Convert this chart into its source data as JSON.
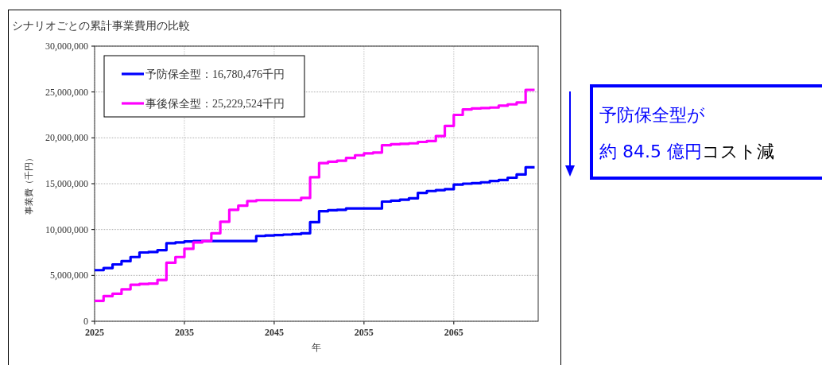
{
  "chart_data": {
    "type": "step",
    "title": "シナリオごとの累計事業費用の比較",
    "xlabel": "年",
    "ylabel": "事業費（千円）",
    "x": [
      2025,
      2026,
      2027,
      2028,
      2029,
      2030,
      2031,
      2032,
      2033,
      2034,
      2035,
      2036,
      2037,
      2038,
      2039,
      2040,
      2041,
      2042,
      2043,
      2044,
      2045,
      2046,
      2047,
      2048,
      2049,
      2050,
      2051,
      2052,
      2053,
      2054,
      2055,
      2056,
      2057,
      2058,
      2059,
      2060,
      2061,
      2062,
      2063,
      2064,
      2065,
      2066,
      2067,
      2068,
      2069,
      2070,
      2071,
      2072,
      2073,
      2074
    ],
    "series": [
      {
        "name": "予防保全型：16,780,476千円",
        "color": "#0000ff",
        "values": [
          5570000,
          5800000,
          6200000,
          6550000,
          7000000,
          7500000,
          7550000,
          7750000,
          8500000,
          8600000,
          8700000,
          8750000,
          8750000,
          8750000,
          8750000,
          8750000,
          8750000,
          8750000,
          9300000,
          9350000,
          9400000,
          9450000,
          9500000,
          9600000,
          10800000,
          12000000,
          12100000,
          12150000,
          12300000,
          12300000,
          12300000,
          12300000,
          13050000,
          13150000,
          13250000,
          13400000,
          14000000,
          14200000,
          14300000,
          14400000,
          14900000,
          15000000,
          15050000,
          15150000,
          15300000,
          15400000,
          15650000,
          16000000,
          16780476,
          16780476
        ]
      },
      {
        "name": "事後保全型：25,229,524千円",
        "color": "#ff00ff",
        "values": [
          2230000,
          2750000,
          3000000,
          3480000,
          3970000,
          4060000,
          4100000,
          4500000,
          6380000,
          7000000,
          7900000,
          8600000,
          8750000,
          9600000,
          10850000,
          12150000,
          12600000,
          13100000,
          13200000,
          13200000,
          13200000,
          13200000,
          13200000,
          13450000,
          15700000,
          17250000,
          17400000,
          17500000,
          17800000,
          18100000,
          18300000,
          18400000,
          19200000,
          19300000,
          19350000,
          19400000,
          19550000,
          19650000,
          20200000,
          21300000,
          22500000,
          23100000,
          23200000,
          23250000,
          23300000,
          23500000,
          23650000,
          23850000,
          25229524,
          25229524
        ]
      }
    ],
    "xlim": [
      2025,
      2074.4
    ],
    "ylim": [
      0,
      30000000
    ],
    "xticks": [
      2025,
      2035,
      2045,
      2055,
      2065
    ],
    "yticks": [
      0,
      {
        "value": 5000000,
        "label": "5,000,000"
      },
      {
        "value": 10000000,
        "label": "10,000,000"
      },
      {
        "value": 15000000,
        "label": "15,000,000"
      },
      {
        "value": 20000000,
        "label": "20,000,000"
      },
      {
        "value": 25000000,
        "label": "25,000,000"
      },
      {
        "value": 30000000,
        "label": "30,000,000"
      }
    ],
    "grid": true,
    "legend": "top left",
    "line_style": "solid",
    "marker": "none",
    "annotations": [
      "予防保全型が",
      "約 84.5 億円",
      "コスト減"
    ]
  }
}
